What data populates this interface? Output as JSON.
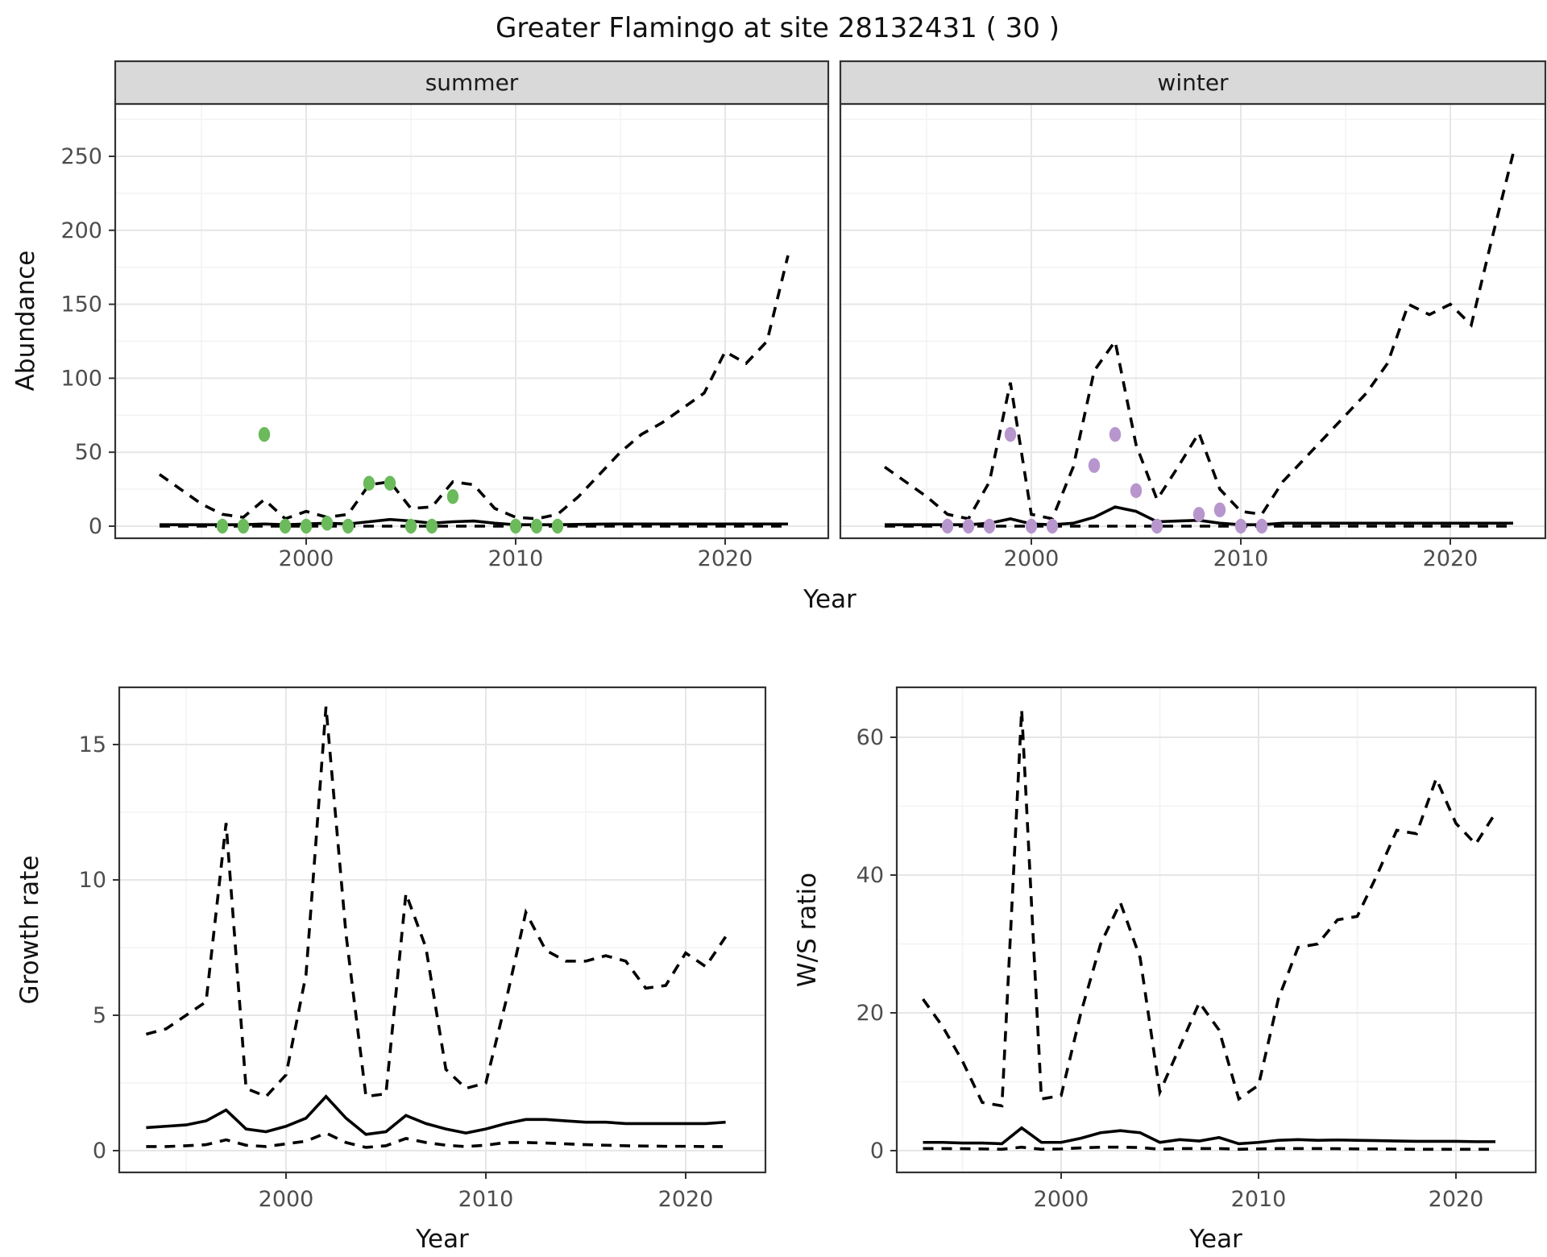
{
  "title": "Greater Flamingo at site 28132431 ( 30 )",
  "colors": {
    "summer_point": "#6BBA5B",
    "winter_point": "#B796CD",
    "line": "#000000",
    "strip_bg": "#d9d9d9",
    "grid_major": "#e6e6e6",
    "grid_minor": "#f2f2f2",
    "panel_border": "#333333",
    "tick_text": "#4d4d4d"
  },
  "chart_data": [
    {
      "id": "abundance-summer",
      "type": "line",
      "facet_label": "summer",
      "xlabel": "Year",
      "ylabel": "Abundance",
      "x_axis": {
        "ticks": [
          2000,
          2010,
          2020
        ],
        "minor": [
          1995,
          2005,
          2015
        ]
      },
      "y_axis": {
        "ticks": [
          0,
          50,
          100,
          150,
          200,
          250
        ],
        "minor": [
          25,
          75,
          125,
          175,
          225,
          275
        ]
      },
      "xlim": [
        1990.9,
        2024.9
      ],
      "ylim": [
        -8,
        285
      ],
      "x": [
        1993,
        1994,
        1995,
        1996,
        1997,
        1998,
        1999,
        2000,
        2001,
        2002,
        2003,
        2004,
        2005,
        2006,
        2007,
        2008,
        2009,
        2010,
        2011,
        2012,
        2013,
        2014,
        2015,
        2016,
        2017,
        2018,
        2019,
        2020,
        2021,
        2022,
        2023
      ],
      "series": [
        {
          "name": "upper_ci",
          "style": "dashed",
          "values": [
            35,
            25,
            15,
            8,
            6,
            18,
            5,
            10,
            6,
            8,
            28,
            30,
            12,
            13,
            30,
            28,
            12,
            6,
            5,
            8,
            20,
            35,
            50,
            62,
            70,
            80,
            90,
            118,
            110,
            125,
            183
          ]
        },
        {
          "name": "median",
          "style": "solid",
          "values": [
            1,
            1,
            1,
            1,
            1,
            1.5,
            1,
            1.5,
            2,
            1.5,
            3,
            4.5,
            3.5,
            2,
            3,
            3.5,
            2,
            1,
            1,
            1,
            1.2,
            1.4,
            1.5,
            1.5,
            1.5,
            1.5,
            1.5,
            1.5,
            1.5,
            1.5,
            1.5
          ]
        },
        {
          "name": "lower_ci",
          "style": "dashed",
          "values": [
            0,
            0,
            0,
            0,
            0,
            0,
            0,
            0,
            0,
            0,
            0,
            0,
            0,
            0,
            0,
            0,
            0,
            0,
            0,
            0,
            0,
            0,
            0,
            0,
            0,
            0,
            0,
            0,
            0,
            0,
            0
          ]
        }
      ],
      "points": {
        "name": "summer-observations",
        "color_key": "summer_point",
        "x": [
          1996,
          1997,
          1998,
          1999,
          2000,
          2001,
          2002,
          2003,
          2004,
          2005,
          2006,
          2007,
          2010,
          2011,
          2012
        ],
        "y": [
          0,
          0,
          62,
          0,
          0,
          2,
          0,
          29,
          29,
          0,
          0,
          20,
          0,
          0,
          0
        ]
      }
    },
    {
      "id": "abundance-winter",
      "type": "line",
      "facet_label": "winter",
      "xlabel": "Year",
      "ylabel": "Abundance",
      "x_axis": {
        "ticks": [
          2000,
          2010,
          2020
        ],
        "minor": [
          1995,
          2005,
          2015
        ]
      },
      "y_axis": {
        "ticks": [
          0,
          50,
          100,
          150,
          200,
          250
        ],
        "minor": [
          25,
          75,
          125,
          175,
          225,
          275
        ]
      },
      "xlim": [
        1990.9,
        2024.9
      ],
      "ylim": [
        -8,
        285
      ],
      "x": [
        1993,
        1994,
        1995,
        1996,
        1997,
        1998,
        1999,
        2000,
        2001,
        2002,
        2003,
        2004,
        2005,
        2006,
        2007,
        2008,
        2009,
        2010,
        2011,
        2012,
        2013,
        2014,
        2015,
        2016,
        2017,
        2018,
        2019,
        2020,
        2021,
        2022,
        2023
      ],
      "series": [
        {
          "name": "upper_ci",
          "style": "dashed",
          "values": [
            40,
            30,
            20,
            8,
            5,
            30,
            97,
            8,
            5,
            40,
            105,
            125,
            55,
            18,
            40,
            63,
            25,
            10,
            8,
            30,
            45,
            60,
            75,
            90,
            110,
            150,
            143,
            150,
            136,
            195,
            252
          ]
        },
        {
          "name": "median",
          "style": "solid",
          "values": [
            1,
            1,
            1,
            1,
            1,
            2,
            5,
            1.5,
            1,
            2,
            6,
            13,
            10,
            3,
            3.5,
            4,
            2,
            1,
            1,
            2,
            2,
            2,
            2,
            2,
            2,
            2,
            2,
            2,
            2,
            2,
            2
          ]
        },
        {
          "name": "lower_ci",
          "style": "dashed",
          "values": [
            0,
            0,
            0,
            0,
            0,
            0,
            0,
            0,
            0,
            0,
            0,
            0,
            0,
            0,
            0,
            0,
            0,
            0,
            0,
            0,
            0,
            0,
            0,
            0,
            0,
            0,
            0,
            0,
            0,
            0,
            0
          ]
        }
      ],
      "points": {
        "name": "winter-observations",
        "color_key": "winter_point",
        "x": [
          1996,
          1997,
          1998,
          1999,
          2000,
          2001,
          2003,
          2004,
          2005,
          2006,
          2008,
          2009,
          2010,
          2011
        ],
        "y": [
          0,
          0,
          0,
          62,
          0,
          0,
          41,
          62,
          24,
          0,
          8,
          11,
          0,
          0
        ]
      }
    },
    {
      "id": "growth-rate",
      "type": "line",
      "facet_label": null,
      "xlabel": "Year",
      "ylabel": "Growth rate",
      "x_axis": {
        "ticks": [
          2000,
          2010,
          2020
        ],
        "minor": [
          1995,
          2005,
          2015
        ]
      },
      "y_axis": {
        "ticks": [
          0,
          5,
          10,
          15
        ],
        "minor": [
          2.5,
          7.5,
          12.5
        ]
      },
      "xlim": [
        1991.7,
        2024.4
      ],
      "ylim": [
        -0.7,
        17.2
      ],
      "x": [
        1993,
        1994,
        1995,
        1996,
        1997,
        1998,
        1999,
        2000,
        2001,
        2002,
        2003,
        2004,
        2005,
        2006,
        2007,
        2008,
        2009,
        2010,
        2011,
        2012,
        2013,
        2014,
        2015,
        2016,
        2017,
        2018,
        2019,
        2020,
        2021,
        2022
      ],
      "series": [
        {
          "name": "upper_ci",
          "style": "dashed",
          "values": [
            4.3,
            4.5,
            5,
            5.5,
            12.1,
            2.3,
            2,
            2.8,
            6.5,
            16.4,
            8,
            2,
            2.1,
            9.5,
            7.5,
            3,
            2.3,
            2.5,
            5.5,
            8.8,
            7.4,
            7,
            7,
            7.2,
            7,
            6,
            6.1,
            7.3,
            6.8,
            7.9
          ]
        },
        {
          "name": "median",
          "style": "solid",
          "values": [
            0.85,
            0.9,
            0.95,
            1.1,
            1.5,
            0.8,
            0.7,
            0.9,
            1.2,
            2,
            1.2,
            0.6,
            0.7,
            1.3,
            1,
            0.8,
            0.65,
            0.8,
            1,
            1.15,
            1.15,
            1.1,
            1.05,
            1.05,
            1,
            1,
            1,
            1,
            1,
            1.05
          ]
        },
        {
          "name": "lower_ci",
          "style": "dashed",
          "values": [
            0.15,
            0.15,
            0.18,
            0.22,
            0.4,
            0.2,
            0.15,
            0.25,
            0.35,
            0.65,
            0.3,
            0.12,
            0.18,
            0.45,
            0.3,
            0.2,
            0.15,
            0.2,
            0.3,
            0.3,
            0.28,
            0.25,
            0.22,
            0.2,
            0.18,
            0.17,
            0.16,
            0.16,
            0.15,
            0.15
          ]
        }
      ],
      "points": null
    },
    {
      "id": "ws-ratio",
      "type": "line",
      "facet_label": null,
      "xlabel": "Year",
      "ylabel": "W/S ratio",
      "x_axis": {
        "ticks": [
          2000,
          2010,
          2020
        ],
        "minor": [
          1995,
          2005,
          2015
        ]
      },
      "y_axis": {
        "ticks": [
          0,
          20,
          40,
          60
        ],
        "minor": [
          10,
          30,
          50
        ]
      },
      "xlim": [
        1991.7,
        2024.0
      ],
      "ylim": [
        -3.2,
        67.2
      ],
      "x": [
        1993,
        1994,
        1995,
        1996,
        1997,
        1998,
        1999,
        2000,
        2001,
        2002,
        2003,
        2004,
        2005,
        2006,
        2007,
        2008,
        2009,
        2010,
        2011,
        2012,
        2013,
        2014,
        2015,
        2016,
        2017,
        2018,
        2019,
        2020,
        2021,
        2022
      ],
      "series": [
        {
          "name": "upper_ci",
          "style": "dashed",
          "values": [
            22,
            18,
            13,
            7,
            6.5,
            64,
            7.5,
            8,
            20,
            30,
            36,
            28,
            8.5,
            15,
            21.5,
            17.5,
            7.5,
            9.5,
            22,
            29.5,
            30,
            33.5,
            34,
            40,
            46.5,
            46,
            54,
            47.5,
            44.5,
            49
          ]
        },
        {
          "name": "median",
          "style": "solid",
          "values": [
            1.2,
            1.2,
            1.1,
            1.1,
            1,
            3.3,
            1.2,
            1.2,
            1.8,
            2.6,
            2.9,
            2.6,
            1.2,
            1.6,
            1.4,
            1.9,
            1,
            1.2,
            1.5,
            1.6,
            1.5,
            1.55,
            1.5,
            1.45,
            1.4,
            1.35,
            1.35,
            1.35,
            1.3,
            1.3
          ]
        },
        {
          "name": "lower_ci",
          "style": "dashed",
          "values": [
            0.3,
            0.3,
            0.28,
            0.25,
            0.2,
            0.5,
            0.2,
            0.25,
            0.4,
            0.5,
            0.5,
            0.45,
            0.2,
            0.3,
            0.3,
            0.3,
            0.2,
            0.25,
            0.3,
            0.3,
            0.3,
            0.28,
            0.25,
            0.25,
            0.22,
            0.2,
            0.2,
            0.2,
            0.2,
            0.2
          ]
        }
      ],
      "points": null
    }
  ]
}
